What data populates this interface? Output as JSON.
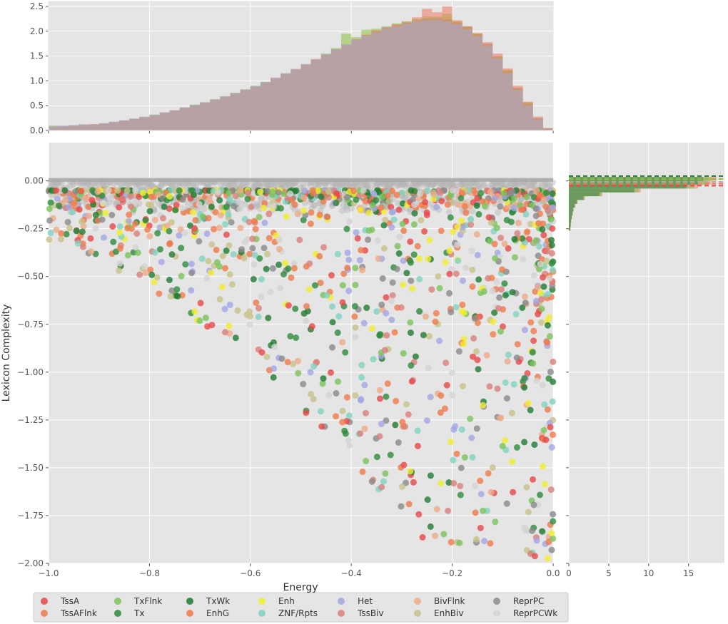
{
  "chart_data": [
    {
      "panel": "top-marginal-histogram",
      "type": "bar",
      "xlim": [
        -1.0,
        0.0
      ],
      "ylim": [
        0.0,
        2.6
      ],
      "yticks": [
        0.0,
        0.5,
        1.0,
        1.5,
        2.0,
        2.5
      ],
      "ytick_labels": [
        "0.0",
        "0.5",
        "1.0",
        "1.5",
        "2.0",
        "2.5"
      ],
      "grid": true,
      "bin_width": 0.02,
      "bin_left_edges": [
        -1.0,
        -0.98,
        -0.96,
        -0.94,
        -0.92,
        -0.9,
        -0.88,
        -0.86,
        -0.84,
        -0.82,
        -0.8,
        -0.78,
        -0.76,
        -0.74,
        -0.72,
        -0.7,
        -0.68,
        -0.66,
        -0.64,
        -0.62,
        -0.6,
        -0.58,
        -0.56,
        -0.54,
        -0.52,
        -0.5,
        -0.48,
        -0.46,
        -0.44,
        -0.42,
        -0.4,
        -0.38,
        -0.36,
        -0.34,
        -0.32,
        -0.3,
        -0.28,
        -0.26,
        -0.24,
        -0.22,
        -0.2,
        -0.18,
        -0.16,
        -0.14,
        -0.12,
        -0.1,
        -0.08,
        -0.06,
        -0.04,
        -0.02
      ],
      "series": [
        {
          "color": "#b3aa9e",
          "values": [
            0.08,
            0.09,
            0.1,
            0.11,
            0.12,
            0.14,
            0.17,
            0.2,
            0.23,
            0.27,
            0.31,
            0.35,
            0.4,
            0.46,
            0.51,
            0.56,
            0.62,
            0.68,
            0.75,
            0.82,
            0.89,
            0.97,
            1.05,
            1.14,
            1.23,
            1.33,
            1.43,
            1.53,
            1.64,
            1.73,
            1.83,
            1.92,
            2.0,
            2.07,
            2.12,
            2.17,
            2.22,
            2.25,
            2.26,
            2.24,
            2.18,
            2.08,
            1.94,
            1.75,
            1.5,
            1.2,
            0.86,
            0.55,
            0.25,
            0.04
          ]
        },
        {
          "color": "#8ac23e",
          "values": [
            0.1,
            0.08,
            0.1,
            0.12,
            0.11,
            0.14,
            0.17,
            0.2,
            0.24,
            0.27,
            0.32,
            0.36,
            0.4,
            0.45,
            0.52,
            0.57,
            0.63,
            0.69,
            0.76,
            0.83,
            0.9,
            0.98,
            1.04,
            1.15,
            1.22,
            1.32,
            1.42,
            1.55,
            1.66,
            1.95,
            1.88,
            2.03,
            2.05,
            2.1,
            2.16,
            2.2,
            2.25,
            2.3,
            2.29,
            2.35,
            2.2,
            2.1,
            1.96,
            1.72,
            1.48,
            1.22,
            0.85,
            0.57,
            0.24,
            0.05
          ]
        },
        {
          "color": "#f07a62",
          "values": [
            0.07,
            0.09,
            0.1,
            0.11,
            0.13,
            0.14,
            0.17,
            0.2,
            0.23,
            0.27,
            0.3,
            0.36,
            0.41,
            0.46,
            0.5,
            0.56,
            0.61,
            0.67,
            0.74,
            0.81,
            0.88,
            0.96,
            1.06,
            1.13,
            1.24,
            1.33,
            1.44,
            1.52,
            1.63,
            1.72,
            1.84,
            1.93,
            2.02,
            2.08,
            2.14,
            2.19,
            2.28,
            2.45,
            2.38,
            2.5,
            2.22,
            2.1,
            1.96,
            1.78,
            1.55,
            1.25,
            0.9,
            0.58,
            0.28,
            0.05
          ]
        },
        {
          "color": "#a8a9d8",
          "values": [
            0.09,
            0.1,
            0.11,
            0.13,
            0.12,
            0.15,
            0.18,
            0.21,
            0.24,
            0.28,
            0.32,
            0.37,
            0.41,
            0.47,
            0.52,
            0.57,
            0.63,
            0.69,
            0.76,
            0.83,
            0.9,
            0.98,
            1.07,
            1.16,
            1.24,
            1.34,
            1.43,
            1.54,
            1.64,
            1.74,
            1.83,
            1.91,
            1.98,
            2.05,
            2.1,
            2.15,
            2.2,
            2.22,
            2.23,
            2.2,
            2.14,
            2.04,
            1.9,
            1.7,
            1.45,
            1.15,
            0.82,
            0.5,
            0.22,
            0.03
          ]
        }
      ]
    },
    {
      "panel": "main-scatter",
      "type": "scatter",
      "xlabel": "Energy",
      "ylabel": "Lexicon Complexity",
      "xlim": [
        -1.0,
        0.0
      ],
      "ylim": [
        -2.0,
        0.2
      ],
      "xticks": [
        -1.0,
        -0.8,
        -0.6,
        -0.4,
        -0.2,
        0.0
      ],
      "xtick_labels": [
        "−1.0",
        "−0.8",
        "−0.6",
        "−0.4",
        "−0.2",
        "0.0"
      ],
      "yticks": [
        0.0,
        -0.25,
        -0.5,
        -0.75,
        -1.0,
        -1.25,
        -1.5,
        -1.75,
        -2.0
      ],
      "ytick_labels": [
        "0.00",
        "−0.25",
        "−0.50",
        "−0.75",
        "−1.00",
        "−1.25",
        "−1.50",
        "−1.75",
        "−2.00"
      ],
      "grid": true,
      "legend_position": "bottom",
      "series": [
        {
          "name": "TssA",
          "color": "#e8484a"
        },
        {
          "name": "TssAFlnk",
          "color": "#ec7a4c"
        },
        {
          "name": "TxFlnk",
          "color": "#7cc35a"
        },
        {
          "name": "Tx",
          "color": "#2e8b3c"
        },
        {
          "name": "TxWk",
          "color": "#1f7a32"
        },
        {
          "name": "EnhG",
          "color": "#f27a4a"
        },
        {
          "name": "Enh",
          "color": "#f1ee2e"
        },
        {
          "name": "ZNF/Rpts",
          "color": "#7fd2c0"
        },
        {
          "name": "Het",
          "color": "#a2a6e2"
        },
        {
          "name": "TssBiv",
          "color": "#d9807a"
        },
        {
          "name": "BivFlnk",
          "color": "#eeaa8a"
        },
        {
          "name": "EnhBiv",
          "color": "#c8c28a"
        },
        {
          "name": "ReprPC",
          "color": "#8a8a8a"
        },
        {
          "name": "ReprPCWk",
          "color": "#d3d3d3"
        }
      ]
    },
    {
      "panel": "right-marginal-histogram",
      "type": "bar",
      "orientation": "horizontal",
      "xlim": [
        0,
        19.5
      ],
      "xticks": [
        0,
        5,
        10,
        15
      ],
      "xtick_labels": [
        "0",
        "5",
        "10",
        "15"
      ],
      "ylim": [
        -2.0,
        0.2
      ],
      "grid": true,
      "bins_y": [
        0.02,
        0.0,
        -0.02,
        -0.04,
        -0.06,
        -0.08,
        -0.1,
        -0.12,
        -0.14,
        -0.16,
        -0.18,
        -0.2,
        -0.22,
        -0.24
      ],
      "values": [
        18.5,
        17.8,
        16.2,
        9.0,
        4.2,
        2.0,
        1.1,
        0.8,
        0.6,
        0.5,
        0.4,
        0.3,
        0.25,
        0.2
      ],
      "dashed_lines": [
        {
          "color": "#1f7a32",
          "y": 0.025
        },
        {
          "color": "#8ac23e",
          "y": 0.01
        },
        {
          "color": "#b3aa9e",
          "y": -0.005
        },
        {
          "color": "#f07a62",
          "y": -0.015
        },
        {
          "color": "#e8484a",
          "y": -0.025
        }
      ]
    }
  ]
}
